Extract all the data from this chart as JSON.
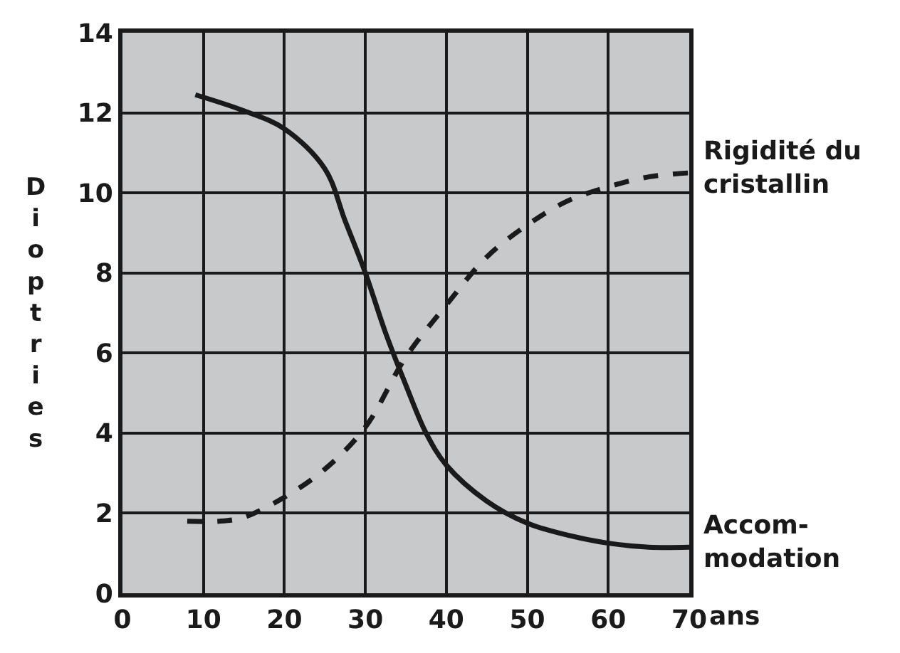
{
  "chart_data": {
    "type": "line",
    "xlabel": "ans",
    "ylabel": "Dioptries",
    "xlim": [
      0,
      70
    ],
    "ylim": [
      0,
      14
    ],
    "xticks": [
      0,
      10,
      20,
      30,
      40,
      50,
      60,
      70
    ],
    "yticks": [
      0,
      2,
      4,
      6,
      8,
      10,
      12,
      14
    ],
    "grid": true,
    "legend": false,
    "marker": "none",
    "series": [
      {
        "name": "Rigidité du\ncristallin",
        "color": "#1a1a1a",
        "line_style": "dashed",
        "x": [
          8,
          12,
          15,
          20,
          25,
          30,
          35,
          40,
          45,
          50,
          55,
          60,
          65,
          70
        ],
        "values": [
          1.8,
          1.8,
          1.9,
          2.4,
          3.1,
          4.15,
          5.9,
          7.2,
          8.4,
          9.2,
          9.8,
          10.15,
          10.4,
          10.5
        ]
      },
      {
        "name": "Accom-\nmodation",
        "color": "#1a1a1a",
        "line_style": "solid",
        "x": [
          9,
          15,
          20,
          25,
          27.5,
          30,
          32.5,
          35,
          37.5,
          40,
          45,
          50,
          55,
          60,
          65,
          70
        ],
        "values": [
          12.45,
          12.05,
          11.6,
          10.6,
          9.3,
          8.0,
          6.5,
          5.2,
          4.0,
          3.2,
          2.3,
          1.75,
          1.45,
          1.25,
          1.15,
          1.15
        ]
      }
    ]
  }
}
